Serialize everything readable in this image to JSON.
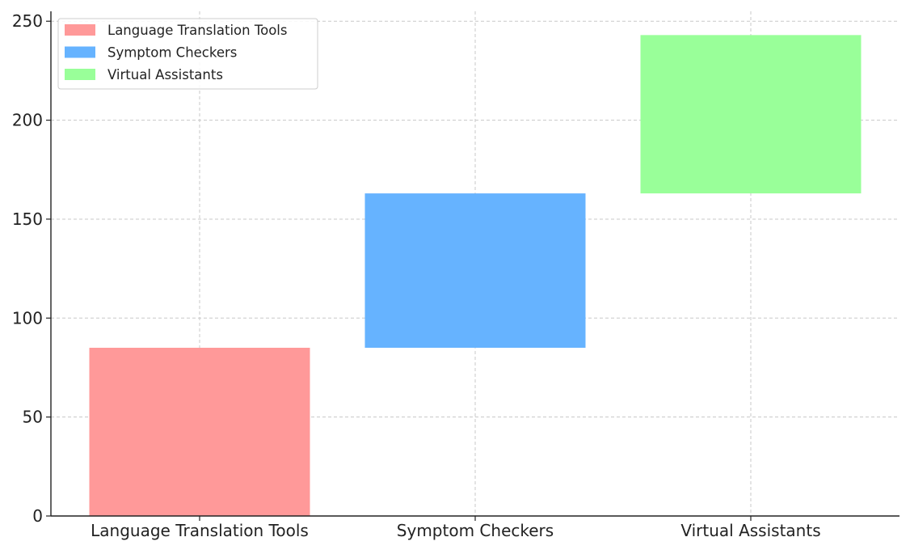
{
  "chart_data": {
    "type": "bar",
    "subtype": "waterfall",
    "title": "",
    "xlabel": "",
    "ylabel": "",
    "categories": [
      "Language Translation Tools",
      "Symptom Checkers",
      "Virtual Assistants"
    ],
    "values": [
      85,
      78,
      80
    ],
    "bar_bottoms": [
      0,
      85,
      163
    ],
    "bar_tops": [
      85,
      163,
      243
    ],
    "colors": [
      "#ff9999",
      "#66b3ff",
      "#99ff99"
    ],
    "ylim": [
      0,
      255
    ],
    "yticks": [
      0,
      50,
      100,
      150,
      200,
      250
    ],
    "grid": true,
    "legend": {
      "position": "top-left",
      "entries": [
        "Language Translation Tools",
        "Symptom Checkers",
        "Virtual Assistants"
      ]
    }
  }
}
